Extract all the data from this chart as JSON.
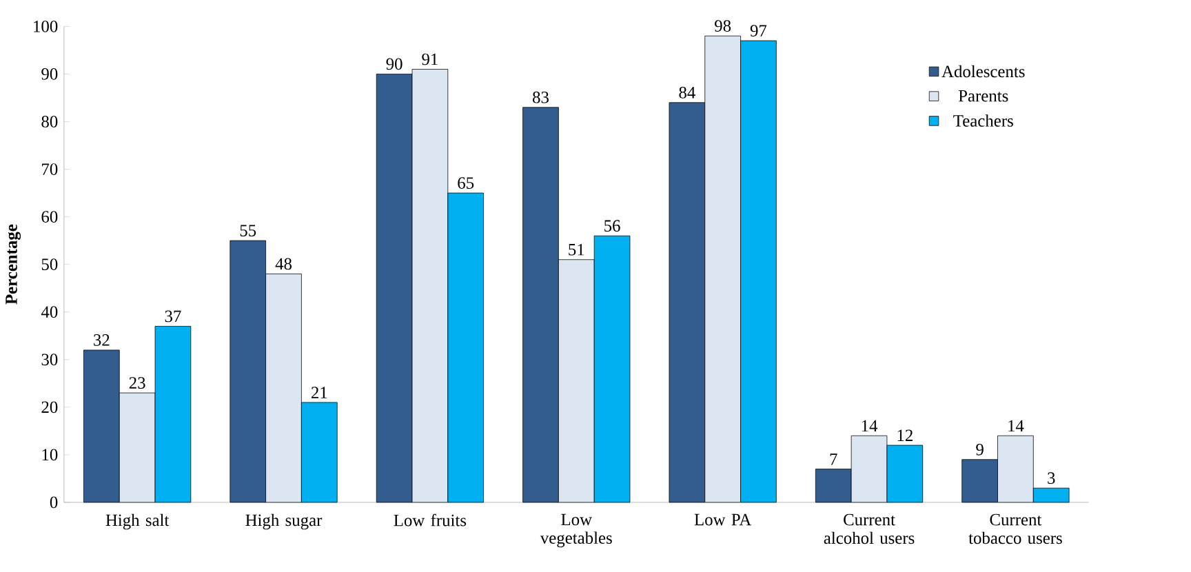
{
  "chart_data": {
    "type": "bar",
    "ylabel": "Percentage",
    "categories": [
      "High salt",
      "High sugar",
      "Low fruits",
      "Low vegetables",
      "Low PA",
      "Current alcohol users",
      "Current tobacco users"
    ],
    "series": [
      {
        "name": "Adolescents",
        "color": "#335c8f",
        "values": [
          32,
          55,
          90,
          83,
          84,
          7,
          9
        ]
      },
      {
        "name": "Parents",
        "color": "#dce6f2",
        "values": [
          23,
          48,
          91,
          51,
          98,
          14,
          14
        ]
      },
      {
        "name": "Teachers",
        "color": "#00b0f0",
        "values": [
          37,
          21,
          65,
          56,
          97,
          12,
          3
        ]
      }
    ],
    "ylim": [
      0,
      100
    ],
    "yticks": [
      0,
      10,
      20,
      30,
      40,
      50,
      60,
      70,
      80,
      90,
      100
    ],
    "grid": false,
    "legend": "top right",
    "data_labels": true
  }
}
